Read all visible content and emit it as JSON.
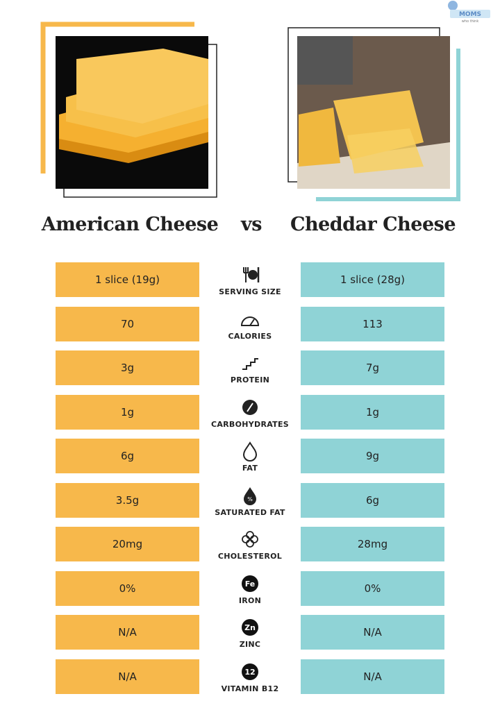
{
  "logo": {
    "name": "MOMS",
    "tagline": "who think"
  },
  "header": {
    "left_title": "American Cheese",
    "vs": "vs",
    "right_title": "Cheddar Cheese"
  },
  "rows": [
    {
      "left": "1 slice (19g)",
      "label": "SERVING SIZE",
      "right": "1 slice (28g)"
    },
    {
      "left": "70",
      "label": "CALORIES",
      "right": "113"
    },
    {
      "left": "3g",
      "label": "PROTEIN",
      "right": "7g"
    },
    {
      "left": "1g",
      "label": "CARBOHYDRATES",
      "right": "1g"
    },
    {
      "left": "6g",
      "label": "FAT",
      "right": "9g"
    },
    {
      "left": "3.5g",
      "label": "SATURATED FAT",
      "right": "6g"
    },
    {
      "left": "20mg",
      "label": "CHOLESTEROL",
      "right": "28mg"
    },
    {
      "left": "0%",
      "label": "IRON",
      "right": "0%",
      "icon_text": "Fe"
    },
    {
      "left": "N/A",
      "label": "ZINC",
      "right": "N/A",
      "icon_text": "Zn"
    },
    {
      "left": "N/A",
      "label": "VITAMIN B12",
      "right": "N/A",
      "icon_text": "12"
    }
  ]
}
